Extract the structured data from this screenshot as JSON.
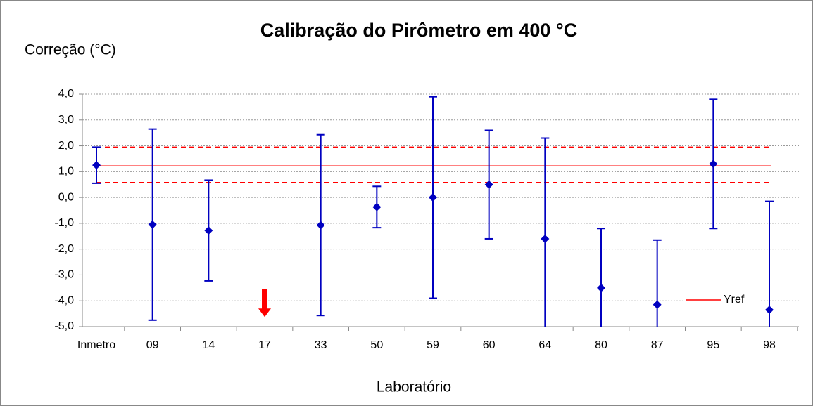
{
  "chart_data": {
    "type": "errorbar",
    "title": "Calibração do Pirômetro em 400 °C",
    "y_label": "Correção (°C)",
    "x_label": "Laboratório",
    "categories": [
      "Inmetro",
      "09",
      "14",
      "17",
      "33",
      "50",
      "59",
      "60",
      "64",
      "80",
      "87",
      "95",
      "98"
    ],
    "values": [
      1.25,
      -1.05,
      -1.28,
      null,
      -1.07,
      -0.37,
      0.0,
      0.5,
      -1.6,
      -3.5,
      -4.15,
      1.3,
      -4.35
    ],
    "errors": [
      0.7,
      3.7,
      1.95,
      null,
      3.5,
      0.8,
      3.9,
      2.1,
      3.9,
      2.3,
      2.5,
      2.5,
      4.2
    ],
    "color": "#0000c0",
    "reference": {
      "name": "Yref",
      "color": "#ff0000",
      "value": 1.22,
      "limits": [
        0.58,
        1.95
      ]
    },
    "ylim": [
      -5,
      4
    ],
    "yticks": [
      {
        "value": -5,
        "label": "-5,0"
      },
      {
        "value": -4,
        "label": "-4,0"
      },
      {
        "value": -3,
        "label": "-3,0"
      },
      {
        "value": -2,
        "label": "-2,0"
      },
      {
        "value": -1,
        "label": "-1,0"
      },
      {
        "value": 0,
        "label": "0,0"
      },
      {
        "value": 1,
        "label": "1,0"
      },
      {
        "value": 2,
        "label": "2,0"
      },
      {
        "value": 3,
        "label": "3,0"
      },
      {
        "value": 4,
        "label": "4,0"
      }
    ],
    "grid": true,
    "legend": "lower right"
  }
}
